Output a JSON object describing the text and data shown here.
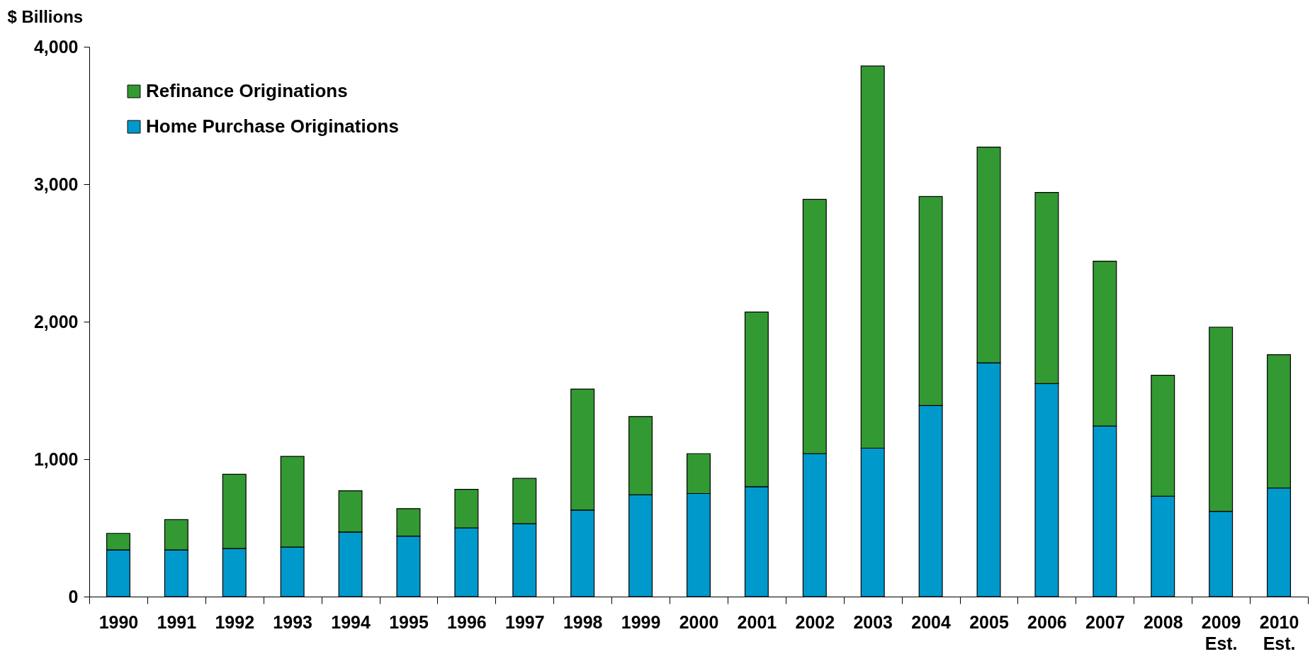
{
  "chart_data": {
    "type": "bar",
    "stacked": true,
    "ylabel": "$ Billions",
    "categories": [
      "1990",
      "1991",
      "1992",
      "1993",
      "1994",
      "1995",
      "1996",
      "1997",
      "1998",
      "1999",
      "2000",
      "2001",
      "2002",
      "2003",
      "2004",
      "2005",
      "2006",
      "2007",
      "2008",
      "2009\nEst.",
      "2010\nEst."
    ],
    "series": [
      {
        "name": "Home Purchase Originations",
        "color": "#0099cc",
        "values": [
          340,
          340,
          350,
          360,
          470,
          440,
          500,
          530,
          630,
          740,
          750,
          800,
          1040,
          1080,
          1390,
          1700,
          1550,
          1240,
          730,
          620,
          790
        ]
      },
      {
        "name": "Refinance Originations",
        "color": "#339933",
        "values": [
          120,
          220,
          540,
          660,
          300,
          200,
          280,
          330,
          880,
          570,
          290,
          1270,
          1850,
          2780,
          1520,
          1570,
          1390,
          1200,
          880,
          1340,
          970
        ]
      }
    ],
    "ylim": [
      0,
      4000
    ],
    "yticks": [
      {
        "value": 0,
        "label": "0"
      },
      {
        "value": 1000,
        "label": "1,000"
      },
      {
        "value": 2000,
        "label": "2,000"
      },
      {
        "value": 3000,
        "label": "3,000"
      },
      {
        "value": 4000,
        "label": "4,000"
      }
    ],
    "grid": false,
    "legend": "top left"
  }
}
